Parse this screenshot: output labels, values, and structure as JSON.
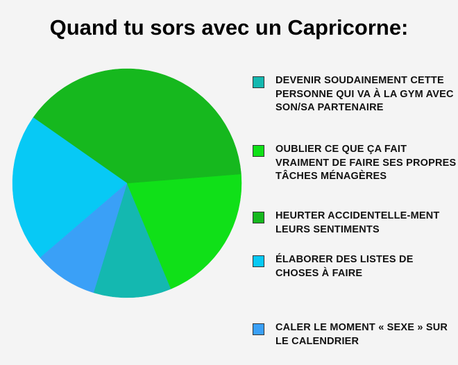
{
  "chart_data": {
    "type": "pie",
    "title": "Quand tu sors avec un Capricorne:",
    "legend_position": "right",
    "slices": [
      {
        "label": "DEVENIR SOUDAINEMENT CETTE PERSONNE QUI VA À LA GYM AVEC SON/SA PARTENAIRE",
        "value": 11,
        "color": "#14b8b0"
      },
      {
        "label": "OUBLIER CE QUE ÇA FAIT VRAIMENT DE FAIRE SES PROPRES TÂCHES MÉNAGÈRES",
        "value": 20,
        "color": "#10e018"
      },
      {
        "label": "HEURTER ACCIDENTELLE-MENT LEURS SENTIMENTS",
        "value": 39,
        "color": "#16b81e"
      },
      {
        "label": "ÉLABORER DES LISTES DE CHOSES À FAIRE",
        "value": 21,
        "color": "#07c9f5"
      },
      {
        "label": "CALER LE MOMENT « SEXE » SUR LE CALENDRIER",
        "value": 9,
        "color": "#3aa0f7"
      }
    ]
  }
}
